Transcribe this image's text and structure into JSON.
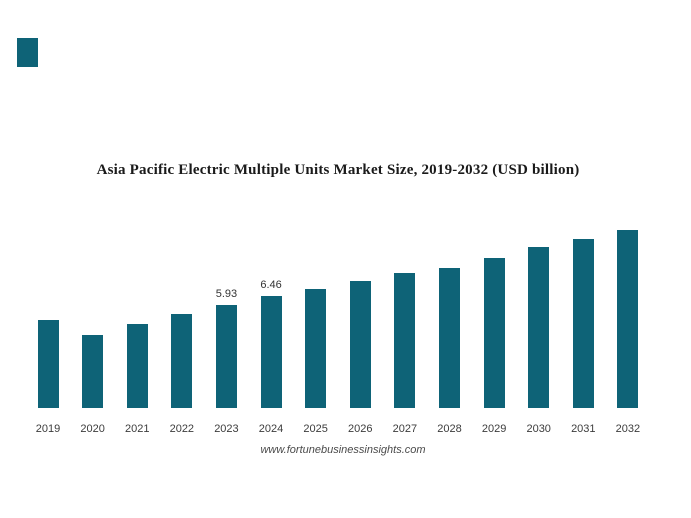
{
  "brand_color": "#0e6377",
  "title": "Asia Pacific Electric Multiple Units Market Size, 2019-2032 (USD billion)",
  "footer": "www.fortunebusinessinsights.com",
  "chart_data": {
    "type": "bar",
    "title": "Asia Pacific Electric Multiple Units Market Size, 2019-2032 (USD billion)",
    "categories": [
      "2019",
      "2020",
      "2021",
      "2022",
      "2023",
      "2024",
      "2025",
      "2026",
      "2027",
      "2028",
      "2029",
      "2030",
      "2031",
      "2032"
    ],
    "values": [
      5.08,
      4.22,
      4.8,
      5.38,
      5.93,
      6.46,
      6.82,
      7.28,
      7.74,
      8.03,
      8.61,
      9.25,
      9.71,
      10.23
    ],
    "data_labels": [
      "",
      "",
      "",
      "",
      "5.93",
      "6.46",
      "",
      "",
      "",
      "",
      "",
      "",
      "",
      ""
    ],
    "bar_color": "#0e6377",
    "xlabel": "",
    "ylabel": "",
    "ylim": [
      0,
      11
    ],
    "grid": false,
    "axes_visible": false,
    "legend": "none"
  }
}
